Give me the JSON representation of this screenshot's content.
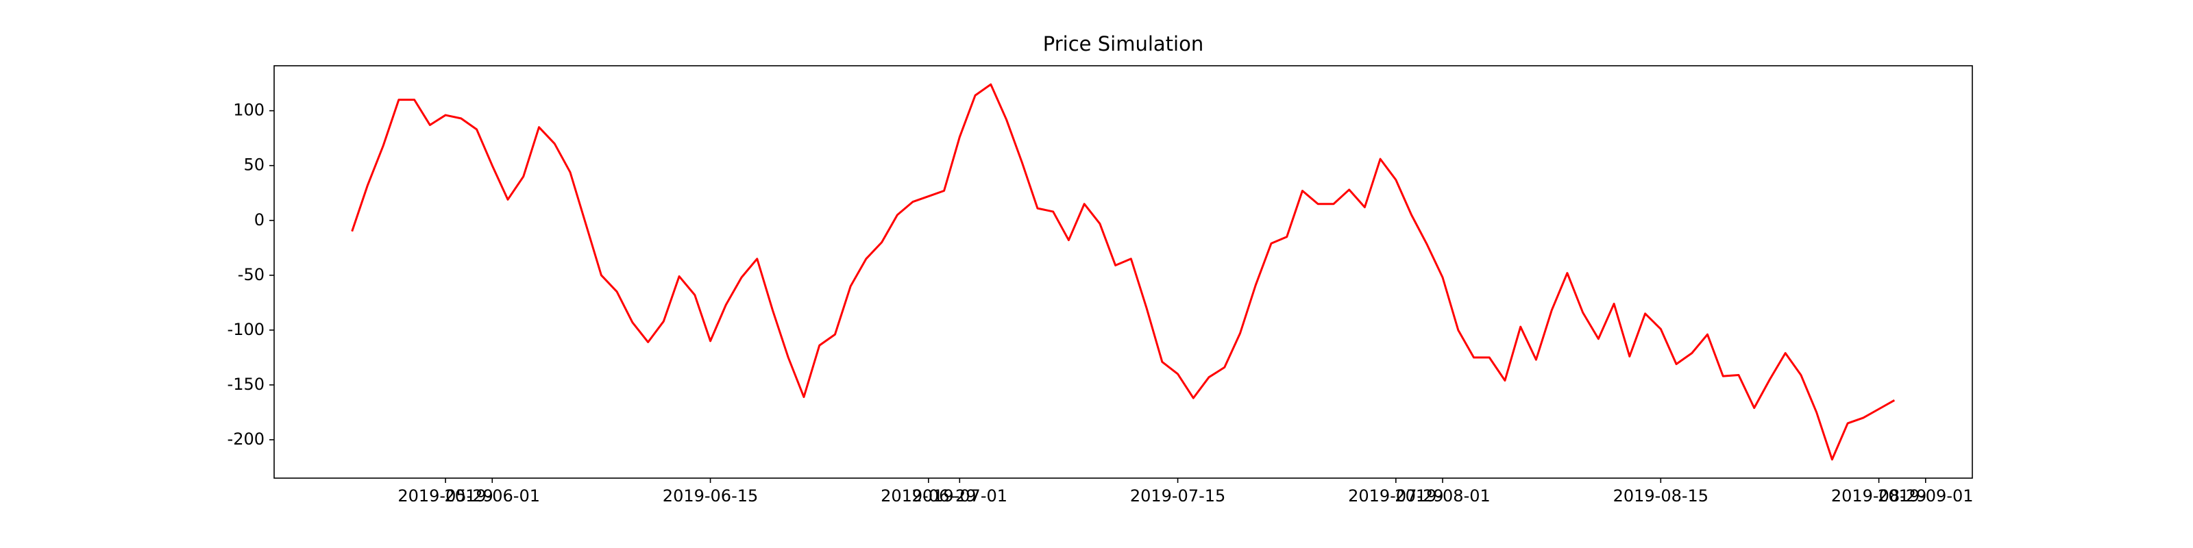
{
  "chart_data": {
    "type": "line",
    "title": "Price Simulation",
    "x": [
      "2019-05-23",
      "2019-05-24",
      "2019-05-25",
      "2019-05-26",
      "2019-05-27",
      "2019-05-28",
      "2019-05-29",
      "2019-05-30",
      "2019-05-31",
      "2019-06-01",
      "2019-06-02",
      "2019-06-03",
      "2019-06-04",
      "2019-06-05",
      "2019-06-06",
      "2019-06-07",
      "2019-06-08",
      "2019-06-09",
      "2019-06-10",
      "2019-06-11",
      "2019-06-12",
      "2019-06-13",
      "2019-06-14",
      "2019-06-15",
      "2019-06-16",
      "2019-06-17",
      "2019-06-18",
      "2019-06-19",
      "2019-06-20",
      "2019-06-21",
      "2019-06-22",
      "2019-06-23",
      "2019-06-24",
      "2019-06-25",
      "2019-06-26",
      "2019-06-27",
      "2019-06-28",
      "2019-06-29",
      "2019-06-30",
      "2019-07-01",
      "2019-07-02",
      "2019-07-03",
      "2019-07-04",
      "2019-07-05",
      "2019-07-06",
      "2019-07-07",
      "2019-07-08",
      "2019-07-09",
      "2019-07-10",
      "2019-07-11",
      "2019-07-12",
      "2019-07-13",
      "2019-07-14",
      "2019-07-15",
      "2019-07-16",
      "2019-07-17",
      "2019-07-18",
      "2019-07-19",
      "2019-07-20",
      "2019-07-21",
      "2019-07-22",
      "2019-07-23",
      "2019-07-24",
      "2019-07-25",
      "2019-07-26",
      "2019-07-27",
      "2019-07-28",
      "2019-07-29",
      "2019-07-30",
      "2019-07-31",
      "2019-08-01",
      "2019-08-02",
      "2019-08-03",
      "2019-08-04",
      "2019-08-05",
      "2019-08-06",
      "2019-08-07",
      "2019-08-08",
      "2019-08-09",
      "2019-08-10",
      "2019-08-11",
      "2019-08-12",
      "2019-08-13",
      "2019-08-14",
      "2019-08-15",
      "2019-08-16",
      "2019-08-17",
      "2019-08-18",
      "2019-08-19",
      "2019-08-20",
      "2019-08-21",
      "2019-08-22",
      "2019-08-23",
      "2019-08-24",
      "2019-08-25",
      "2019-08-26",
      "2019-08-27",
      "2019-08-28",
      "2019-08-29",
      "2019-08-30"
    ],
    "values": [
      -10,
      32,
      68,
      110,
      110,
      87,
      96,
      93,
      83,
      50,
      19,
      40,
      85,
      70,
      44,
      -3,
      -50,
      -65,
      -93,
      -111,
      -92,
      -51,
      -68,
      -110,
      -77,
      -52,
      -35,
      -82,
      -125,
      -161,
      -114,
      -104,
      -60,
      -35,
      -20,
      5,
      17,
      22,
      27,
      76,
      114,
      124,
      92,
      53,
      11,
      8,
      -18,
      15,
      -3,
      -41,
      -35,
      -80,
      -129,
      -140,
      -162,
      -143,
      -134,
      -103,
      -59,
      -21,
      -15,
      27,
      15,
      15,
      28,
      12,
      56,
      37,
      5,
      -22,
      -52,
      -100,
      -125,
      -125,
      -146,
      -97,
      -127,
      -82,
      -48,
      -84,
      -108,
      -76,
      -124,
      -85,
      -99,
      -131,
      -121,
      -104,
      -142,
      -141,
      -171,
      -145,
      -121,
      -141,
      -175,
      -218,
      -185,
      -180,
      -172,
      -164
    ],
    "color": "#ff0000",
    "xlim": [
      "2019-05-18",
      "2019-09-04"
    ],
    "xticks": [
      "2019-05-29",
      "2019-06-01",
      "2019-06-15",
      "2019-06-29",
      "2019-07-01",
      "2019-07-15",
      "2019-07-29",
      "2019-08-01",
      "2019-08-15",
      "2019-08-29",
      "2019-09-01"
    ],
    "ylim": [
      -235,
      141
    ],
    "yticks": [
      -200,
      -150,
      -100,
      -50,
      0,
      50,
      100
    ]
  }
}
